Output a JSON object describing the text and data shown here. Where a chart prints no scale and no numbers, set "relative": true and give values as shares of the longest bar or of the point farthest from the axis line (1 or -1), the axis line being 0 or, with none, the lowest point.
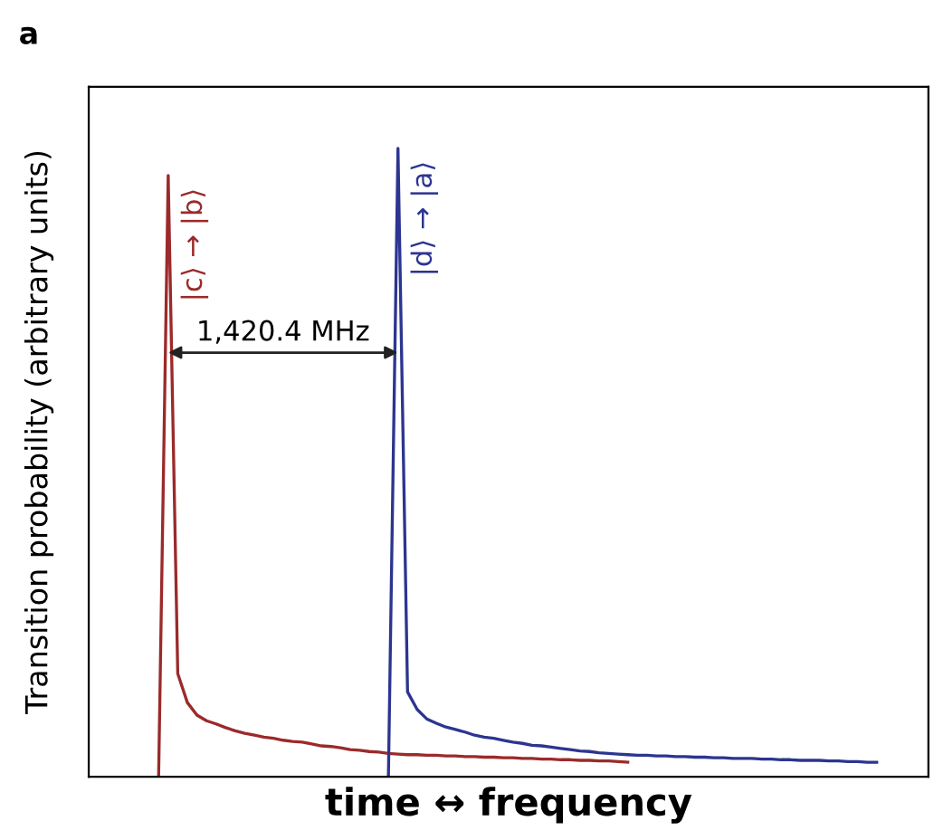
{
  "chart_data": {
    "type": "line",
    "relative": true,
    "xlabel": "time ↔ frequency",
    "ylabel": "Transition probability (arbitrary units)",
    "categories": [
      null,
      null,
      null,
      null,
      null,
      null,
      null,
      null,
      null,
      null,
      null,
      null,
      null,
      null,
      null,
      null,
      null,
      null,
      null,
      null,
      null,
      null,
      null,
      null,
      null,
      null,
      null,
      null,
      null,
      null,
      null,
      null,
      null,
      null,
      null,
      null,
      null,
      null,
      null,
      null,
      null,
      null,
      null,
      null,
      null,
      null,
      null,
      null,
      null,
      null,
      null,
      null,
      null,
      null,
      null,
      null,
      null,
      null,
      null,
      null,
      null,
      null,
      null,
      null,
      null,
      null,
      null,
      null,
      null,
      null,
      null,
      null,
      null,
      null,
      null,
      null,
      null,
      null,
      null,
      null,
      null,
      null,
      null,
      null,
      null,
      null,
      null,
      null
    ],
    "series": [
      {
        "name": "|c⟩ → |b⟩",
        "color": "#9b2a2a",
        "values": [
          null,
          null,
          null,
          null,
          null,
          null,
          null,
          0,
          0.957,
          0.164,
          0.118,
          0.098,
          0.089,
          0.084,
          0.078,
          0.073,
          0.069,
          0.066,
          0.063,
          0.061,
          0.058,
          0.056,
          0.055,
          0.052,
          0.049,
          0.048,
          0.046,
          0.043,
          0.042,
          0.04,
          0.039,
          0.037,
          0.036,
          0.035,
          0.035,
          0.034,
          0.034,
          0.033,
          0.033,
          0.032,
          0.032,
          0.031,
          0.031,
          0.03,
          0.03,
          0.029,
          0.029,
          0.028,
          0.028,
          0.027,
          0.027,
          0.026,
          0.026,
          0.025,
          0.025,
          0.024,
          0.023,
          null,
          null,
          null,
          null,
          null,
          null,
          null,
          null,
          null,
          null,
          null,
          null,
          null,
          null,
          null,
          null,
          null,
          null,
          null,
          null,
          null,
          null,
          null,
          null,
          null,
          null,
          null,
          null,
          null,
          null,
          null
        ]
      },
      {
        "name": "|d⟩ → |a⟩",
        "color": "#2c3590",
        "values": [
          null,
          null,
          null,
          null,
          null,
          null,
          null,
          null,
          null,
          null,
          null,
          null,
          null,
          null,
          null,
          null,
          null,
          null,
          null,
          null,
          null,
          null,
          null,
          null,
          null,
          null,
          null,
          null,
          null,
          null,
          null,
          0,
          1.0,
          0.135,
          0.107,
          0.092,
          0.085,
          0.079,
          0.075,
          0.071,
          0.066,
          0.063,
          0.061,
          0.058,
          0.055,
          0.053,
          0.05,
          0.049,
          0.047,
          0.045,
          0.043,
          0.041,
          0.04,
          0.038,
          0.037,
          0.036,
          0.035,
          0.034,
          0.034,
          0.033,
          0.033,
          0.032,
          0.032,
          0.031,
          0.031,
          0.03,
          0.03,
          0.029,
          0.029,
          0.029,
          0.028,
          0.028,
          0.027,
          0.027,
          0.026,
          0.026,
          0.026,
          0.025,
          0.025,
          0.024,
          0.024,
          0.023,
          0.023,
          null,
          null,
          null,
          null,
          null
        ]
      }
    ],
    "annotations": [
      "a",
      "1,420.4 MHz"
    ]
  }
}
